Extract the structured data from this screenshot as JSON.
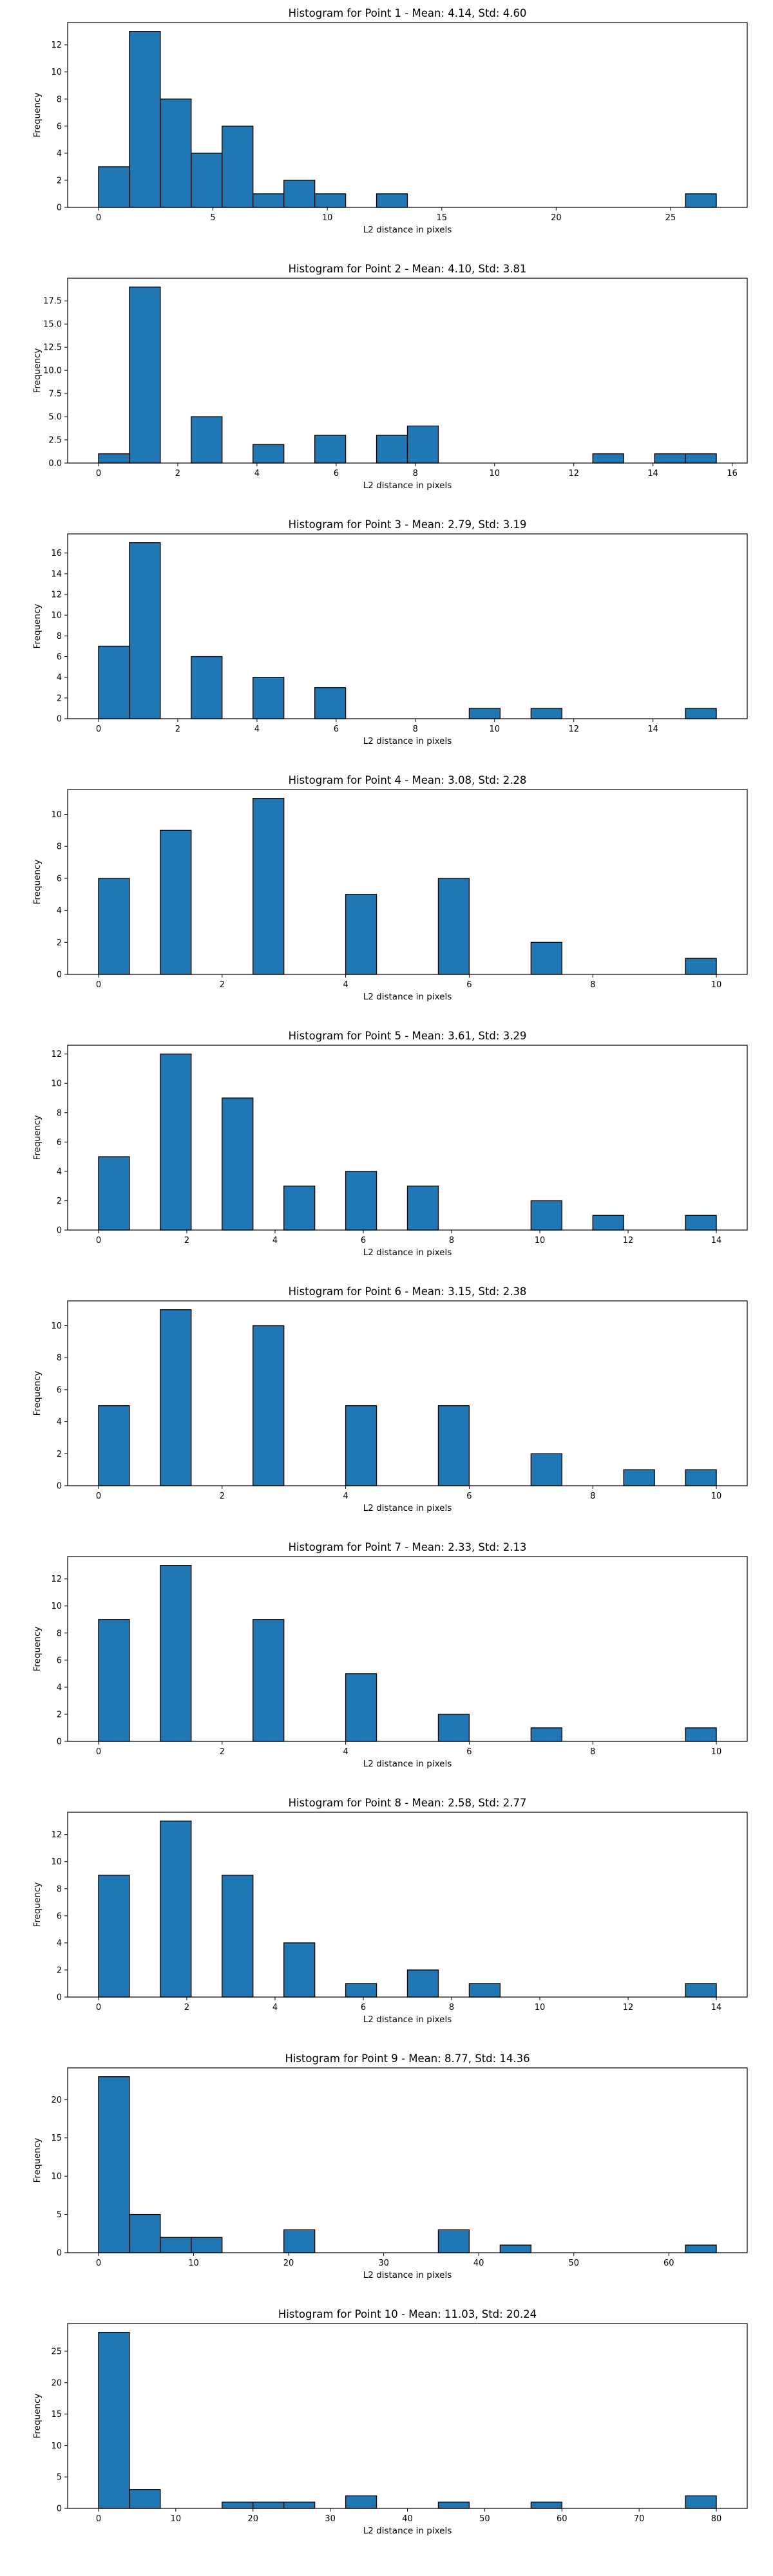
{
  "colors": {
    "bar_fill": "#1f77b4",
    "bar_edge": "#000000"
  },
  "chart_data": [
    {
      "type": "bar",
      "title": "Histogram for Point 1 - Mean: 4.14, Std: 4.60",
      "xlabel": "L2 distance in pixels",
      "ylabel": "Frequency",
      "bin_edges": [
        0.0,
        1.35,
        2.7,
        4.05,
        5.4,
        6.75,
        8.1,
        9.45,
        10.8,
        12.15,
        13.5,
        14.85,
        16.2,
        17.55,
        18.9,
        20.25,
        21.6,
        22.95,
        24.3,
        25.65,
        27.0
      ],
      "counts": [
        3,
        13,
        8,
        4,
        6,
        1,
        2,
        1,
        0,
        1,
        0,
        0,
        0,
        0,
        0,
        0,
        0,
        0,
        0,
        1
      ],
      "xlim": [
        -1.35,
        28.35
      ],
      "ylim": [
        0,
        13.65
      ],
      "xticks": [
        0,
        5,
        10,
        15,
        20,
        25
      ],
      "xtick_labels": [
        "0",
        "5",
        "10",
        "15",
        "20",
        "25"
      ],
      "yticks": [
        0,
        2,
        4,
        6,
        8,
        10,
        12
      ],
      "ytick_labels": [
        "0",
        "2",
        "4",
        "6",
        "8",
        "10",
        "12"
      ]
    },
    {
      "type": "bar",
      "title": "Histogram for Point 2 - Mean: 4.10, Std: 3.81",
      "xlabel": "L2 distance in pixels",
      "ylabel": "Frequency",
      "bin_edges": [
        0.0,
        0.78,
        1.56,
        2.34,
        3.12,
        3.9,
        4.68,
        5.46,
        6.24,
        7.02,
        7.8,
        8.58,
        9.36,
        10.14,
        10.92,
        11.7,
        12.48,
        13.26,
        14.04,
        14.82,
        15.6
      ],
      "counts": [
        1,
        19,
        0,
        5,
        0,
        2,
        0,
        3,
        0,
        3,
        4,
        0,
        0,
        0,
        0,
        0,
        1,
        0,
        1,
        1
      ],
      "xlim": [
        -0.78,
        16.38
      ],
      "ylim": [
        0,
        19.95
      ],
      "xticks": [
        0,
        2,
        4,
        6,
        8,
        10,
        12,
        14,
        16
      ],
      "xtick_labels": [
        "0",
        "2",
        "4",
        "6",
        "8",
        "10",
        "12",
        "14",
        "16"
      ],
      "yticks": [
        0,
        2.5,
        5,
        7.5,
        10,
        12.5,
        15,
        17.5
      ],
      "ytick_labels": [
        "0.0",
        "2.5",
        "5.0",
        "7.5",
        "10.0",
        "12.5",
        "15.0",
        "17.5"
      ]
    },
    {
      "type": "bar",
      "title": "Histogram for Point 3 - Mean: 2.79, Std: 3.19",
      "xlabel": "L2 distance in pixels",
      "ylabel": "Frequency",
      "bin_edges": [
        0.0,
        0.78,
        1.56,
        2.34,
        3.12,
        3.9,
        4.68,
        5.46,
        6.24,
        7.02,
        7.8,
        8.58,
        9.36,
        10.14,
        10.92,
        11.7,
        12.48,
        13.26,
        14.04,
        14.82,
        15.6
      ],
      "counts": [
        7,
        17,
        0,
        6,
        0,
        4,
        0,
        3,
        0,
        0,
        0,
        0,
        1,
        0,
        1,
        0,
        0,
        0,
        0,
        1
      ],
      "xlim": [
        -0.78,
        16.38
      ],
      "ylim": [
        0,
        17.85
      ],
      "xticks": [
        0,
        2,
        4,
        6,
        8,
        10,
        12,
        14
      ],
      "xtick_labels": [
        "0",
        "2",
        "4",
        "6",
        "8",
        "10",
        "12",
        "14"
      ],
      "yticks": [
        0,
        2,
        4,
        6,
        8,
        10,
        12,
        14,
        16
      ],
      "ytick_labels": [
        "0",
        "2",
        "4",
        "6",
        "8",
        "10",
        "12",
        "14",
        "16"
      ]
    },
    {
      "type": "bar",
      "title": "Histogram for Point 4 - Mean: 3.08, Std: 2.28",
      "xlabel": "L2 distance in pixels",
      "ylabel": "Frequency",
      "bin_edges": [
        0.0,
        0.5,
        1.0,
        1.5,
        2.0,
        2.5,
        3.0,
        3.5,
        4.0,
        4.5,
        5.0,
        5.5,
        6.0,
        6.5,
        7.0,
        7.5,
        8.0,
        8.5,
        9.0,
        9.5,
        10.0
      ],
      "counts": [
        6,
        0,
        9,
        0,
        0,
        11,
        0,
        0,
        5,
        0,
        0,
        6,
        0,
        0,
        2,
        0,
        0,
        0,
        0,
        1
      ],
      "xlim": [
        -0.5,
        10.5
      ],
      "ylim": [
        0,
        11.55
      ],
      "xticks": [
        0,
        2,
        4,
        6,
        8,
        10
      ],
      "xtick_labels": [
        "0",
        "2",
        "4",
        "6",
        "8",
        "10"
      ],
      "yticks": [
        0,
        2,
        4,
        6,
        8,
        10
      ],
      "ytick_labels": [
        "0",
        "2",
        "4",
        "6",
        "8",
        "10"
      ]
    },
    {
      "type": "bar",
      "title": "Histogram for Point 5 - Mean: 3.61, Std: 3.29",
      "xlabel": "L2 distance in pixels",
      "ylabel": "Frequency",
      "bin_edges": [
        0.0,
        0.7,
        1.4,
        2.1,
        2.8,
        3.5,
        4.2,
        4.9,
        5.6,
        6.3,
        7.0,
        7.7,
        8.4,
        9.1,
        9.8,
        10.5,
        11.2,
        11.9,
        12.6,
        13.3,
        14.0
      ],
      "counts": [
        5,
        0,
        12,
        0,
        9,
        0,
        3,
        0,
        4,
        0,
        3,
        0,
        0,
        0,
        2,
        0,
        1,
        0,
        0,
        1
      ],
      "xlim": [
        -0.7,
        14.7
      ],
      "ylim": [
        0,
        12.6
      ],
      "xticks": [
        0,
        2,
        4,
        6,
        8,
        10,
        12,
        14
      ],
      "xtick_labels": [
        "0",
        "2",
        "4",
        "6",
        "8",
        "10",
        "12",
        "14"
      ],
      "yticks": [
        0,
        2,
        4,
        6,
        8,
        10,
        12
      ],
      "ytick_labels": [
        "0",
        "2",
        "4",
        "6",
        "8",
        "10",
        "12"
      ]
    },
    {
      "type": "bar",
      "title": "Histogram for Point 6 - Mean: 3.15, Std: 2.38",
      "xlabel": "L2 distance in pixels",
      "ylabel": "Frequency",
      "bin_edges": [
        0.0,
        0.5,
        1.0,
        1.5,
        2.0,
        2.5,
        3.0,
        3.5,
        4.0,
        4.5,
        5.0,
        5.5,
        6.0,
        6.5,
        7.0,
        7.5,
        8.0,
        8.5,
        9.0,
        9.5,
        10.0
      ],
      "counts": [
        5,
        0,
        11,
        0,
        0,
        10,
        0,
        0,
        5,
        0,
        0,
        5,
        0,
        0,
        2,
        0,
        0,
        1,
        0,
        1
      ],
      "xlim": [
        -0.5,
        10.5
      ],
      "ylim": [
        0,
        11.55
      ],
      "xticks": [
        0,
        2,
        4,
        6,
        8,
        10
      ],
      "xtick_labels": [
        "0",
        "2",
        "4",
        "6",
        "8",
        "10"
      ],
      "yticks": [
        0,
        2,
        4,
        6,
        8,
        10
      ],
      "ytick_labels": [
        "0",
        "2",
        "4",
        "6",
        "8",
        "10"
      ]
    },
    {
      "type": "bar",
      "title": "Histogram for Point 7 - Mean: 2.33, Std: 2.13",
      "xlabel": "L2 distance in pixels",
      "ylabel": "Frequency",
      "bin_edges": [
        0.0,
        0.5,
        1.0,
        1.5,
        2.0,
        2.5,
        3.0,
        3.5,
        4.0,
        4.5,
        5.0,
        5.5,
        6.0,
        6.5,
        7.0,
        7.5,
        8.0,
        8.5,
        9.0,
        9.5,
        10.0
      ],
      "counts": [
        9,
        0,
        13,
        0,
        0,
        9,
        0,
        0,
        5,
        0,
        0,
        2,
        0,
        0,
        1,
        0,
        0,
        0,
        0,
        1
      ],
      "xlim": [
        -0.5,
        10.5
      ],
      "ylim": [
        0,
        13.65
      ],
      "xticks": [
        0,
        2,
        4,
        6,
        8,
        10
      ],
      "xtick_labels": [
        "0",
        "2",
        "4",
        "6",
        "8",
        "10"
      ],
      "yticks": [
        0,
        2,
        4,
        6,
        8,
        10,
        12
      ],
      "ytick_labels": [
        "0",
        "2",
        "4",
        "6",
        "8",
        "10",
        "12"
      ]
    },
    {
      "type": "bar",
      "title": "Histogram for Point 8 - Mean: 2.58, Std: 2.77",
      "xlabel": "L2 distance in pixels",
      "ylabel": "Frequency",
      "bin_edges": [
        0.0,
        0.7,
        1.4,
        2.1,
        2.8,
        3.5,
        4.2,
        4.9,
        5.6,
        6.3,
        7.0,
        7.7,
        8.4,
        9.1,
        9.8,
        10.5,
        11.2,
        11.9,
        12.6,
        13.3,
        14.0
      ],
      "counts": [
        9,
        0,
        13,
        0,
        9,
        0,
        4,
        0,
        1,
        0,
        2,
        0,
        1,
        0,
        0,
        0,
        0,
        0,
        0,
        1
      ],
      "xlim": [
        -0.7,
        14.7
      ],
      "ylim": [
        0,
        13.65
      ],
      "xticks": [
        0,
        2,
        4,
        6,
        8,
        10,
        12,
        14
      ],
      "xtick_labels": [
        "0",
        "2",
        "4",
        "6",
        "8",
        "10",
        "12",
        "14"
      ],
      "yticks": [
        0,
        2,
        4,
        6,
        8,
        10,
        12
      ],
      "ytick_labels": [
        "0",
        "2",
        "4",
        "6",
        "8",
        "10",
        "12"
      ]
    },
    {
      "type": "bar",
      "title": "Histogram for Point 9 - Mean: 8.77, Std: 14.36",
      "xlabel": "L2 distance in pixels",
      "ylabel": "Frequency",
      "bin_edges": [
        0.0,
        3.25,
        6.5,
        9.75,
        13.0,
        16.25,
        19.5,
        22.75,
        26.0,
        29.25,
        32.5,
        35.75,
        39.0,
        42.25,
        45.5,
        48.75,
        52.0,
        55.25,
        58.5,
        61.75,
        65.0
      ],
      "counts": [
        23,
        5,
        2,
        2,
        0,
        0,
        3,
        0,
        0,
        0,
        0,
        3,
        0,
        1,
        0,
        0,
        0,
        0,
        0,
        1
      ],
      "xlim": [
        -3.25,
        68.25
      ],
      "ylim": [
        0,
        24.15
      ],
      "xticks": [
        0,
        10,
        20,
        30,
        40,
        50,
        60
      ],
      "xtick_labels": [
        "0",
        "10",
        "20",
        "30",
        "40",
        "50",
        "60"
      ],
      "yticks": [
        0,
        5,
        10,
        15,
        20
      ],
      "ytick_labels": [
        "0",
        "5",
        "10",
        "15",
        "20"
      ]
    },
    {
      "type": "bar",
      "title": "Histogram for Point 10 - Mean: 11.03, Std: 20.24",
      "xlabel": "L2 distance in pixels",
      "ylabel": "Frequency",
      "bin_edges": [
        0.0,
        4.0,
        8.0,
        12.0,
        16.0,
        20.0,
        24.0,
        28.0,
        32.0,
        36.0,
        40.0,
        44.0,
        48.0,
        52.0,
        56.0,
        60.0,
        64.0,
        68.0,
        72.0,
        76.0,
        80.0
      ],
      "counts": [
        28,
        3,
        0,
        0,
        1,
        1,
        1,
        0,
        2,
        0,
        0,
        1,
        0,
        0,
        1,
        0,
        0,
        0,
        0,
        2
      ],
      "xlim": [
        -4.0,
        84.0
      ],
      "ylim": [
        0,
        29.4
      ],
      "xticks": [
        0,
        10,
        20,
        30,
        40,
        50,
        60,
        70,
        80
      ],
      "xtick_labels": [
        "0",
        "10",
        "20",
        "30",
        "40",
        "50",
        "60",
        "70",
        "80"
      ],
      "yticks": [
        0,
        5,
        10,
        15,
        20,
        25
      ],
      "ytick_labels": [
        "0",
        "5",
        "10",
        "15",
        "20",
        "25"
      ]
    }
  ]
}
